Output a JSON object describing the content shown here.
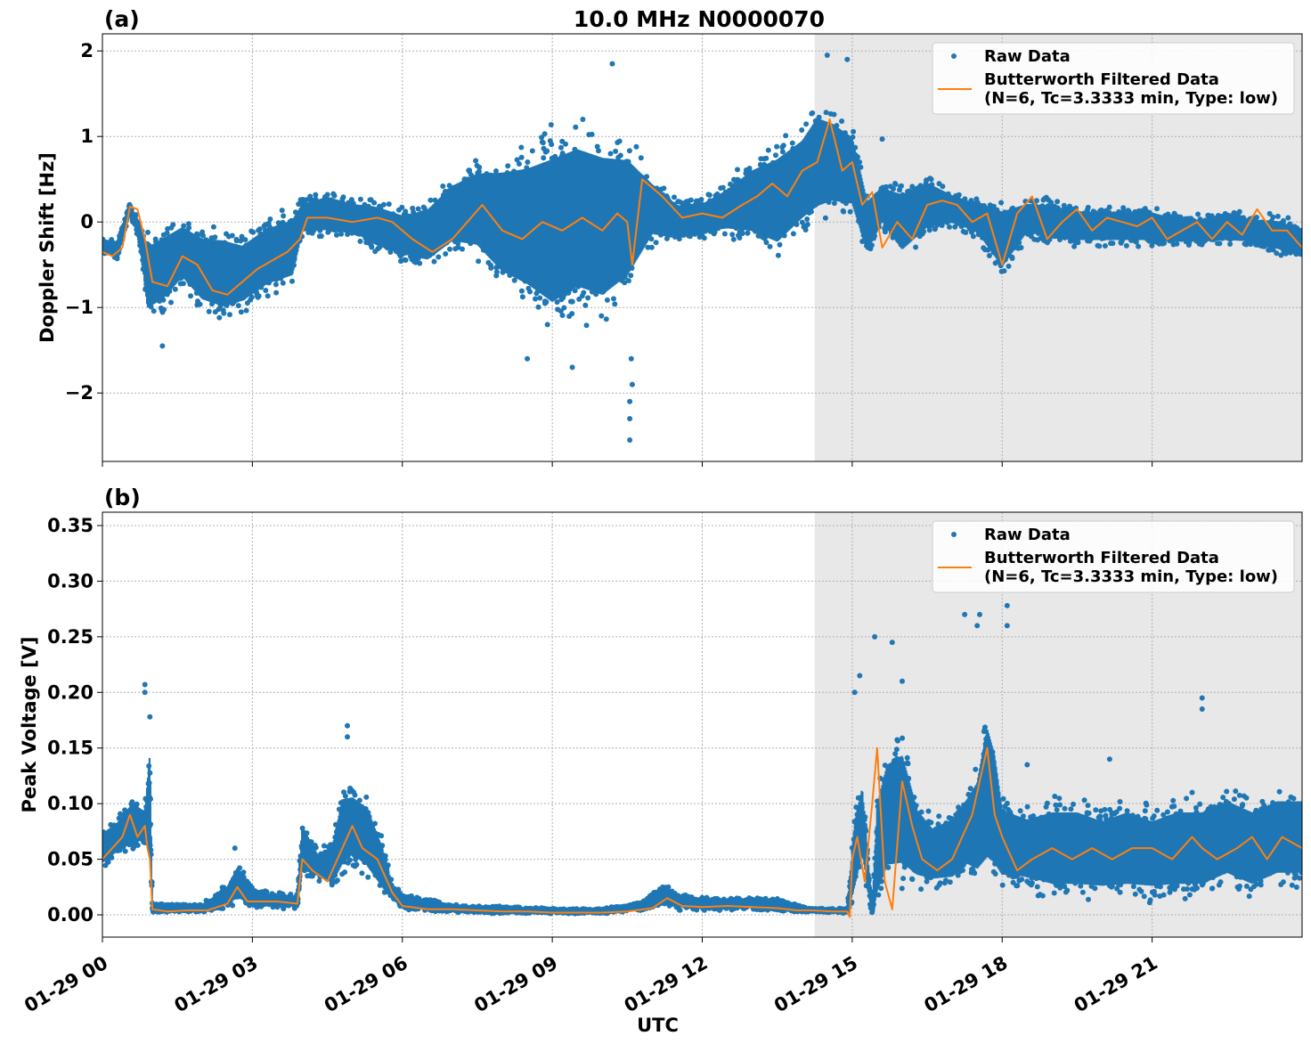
{
  "chart_data": [
    {
      "id": "panel-a",
      "type": "scatter",
      "panel_label": "(a)",
      "title": "10.0 MHz N0000070",
      "ylabel": "Doppler Shift [Hz]",
      "xlabel": "",
      "xlim": [
        0,
        24
      ],
      "ylim": [
        -2.8,
        2.2
      ],
      "yticks": [
        -2,
        -1,
        0,
        1,
        2
      ],
      "ytick_labels": [
        "−2",
        "−1",
        "0",
        "1",
        "2"
      ],
      "xticks": [
        0,
        3,
        6,
        9,
        12,
        15,
        18,
        21
      ],
      "show_xtick_labels": false,
      "shaded_region": [
        14.25,
        24
      ],
      "grid": true,
      "legend": {
        "placement": "top-right",
        "entries": [
          {
            "label": "Raw Data",
            "marker": "dot"
          },
          {
            "label": "Butterworth Filtered Data",
            "label2": "(N=6, Tc=3.3333 min, Type: low)",
            "marker": "line"
          }
        ]
      },
      "series": [
        {
          "name": "Raw Data",
          "color": "#1f77b4",
          "kind": "band",
          "x": [
            0,
            0.3,
            0.55,
            0.75,
            0.9,
            1.2,
            1.6,
            2.0,
            2.4,
            2.8,
            3.3,
            3.8,
            4.0,
            4.5,
            5.0,
            5.5,
            6.0,
            6.5,
            7.0,
            7.5,
            8.0,
            8.5,
            9.0,
            9.5,
            10.0,
            10.5,
            11.0,
            11.5,
            12.0,
            12.5,
            13.0,
            13.5,
            14.0,
            14.3,
            14.6,
            15.0,
            15.3,
            15.6,
            16.0,
            16.5,
            17.0,
            17.5,
            18.0,
            18.5,
            19.0,
            19.5,
            20.0,
            20.5,
            21.0,
            21.5,
            22.0,
            22.5,
            23.0,
            23.5,
            24.0
          ],
          "low": [
            -0.4,
            -0.45,
            0.1,
            -0.3,
            -1.2,
            -1.1,
            -0.8,
            -1.1,
            -1.2,
            -1.1,
            -0.9,
            -0.8,
            -0.2,
            -0.2,
            -0.2,
            -0.4,
            -0.5,
            -0.6,
            -0.4,
            -0.5,
            -0.9,
            -1.1,
            -1.4,
            -1.2,
            -1.3,
            -1.0,
            -0.3,
            -0.3,
            -0.2,
            -0.2,
            -0.3,
            -0.5,
            -0.2,
            -0.1,
            0.0,
            0.0,
            -0.5,
            -0.1,
            -0.5,
            -0.2,
            -0.1,
            -0.2,
            -0.7,
            -0.2,
            -0.3,
            -0.3,
            -0.3,
            -0.3,
            -0.3,
            -0.3,
            -0.3,
            -0.3,
            -0.3,
            -0.4,
            -0.5
          ],
          "high": [
            -0.15,
            -0.2,
            0.25,
            0.0,
            -0.1,
            0.0,
            0.1,
            0.0,
            0.0,
            -0.1,
            0.1,
            0.2,
            0.3,
            0.4,
            0.3,
            0.3,
            0.2,
            0.3,
            0.6,
            0.8,
            0.9,
            1.0,
            1.2,
            1.3,
            1.2,
            1.1,
            0.6,
            0.3,
            0.3,
            0.5,
            0.8,
            1.0,
            1.2,
            1.5,
            1.4,
            1.2,
            0.4,
            0.5,
            0.5,
            0.6,
            0.4,
            0.3,
            0.3,
            0.3,
            0.3,
            0.2,
            0.2,
            0.2,
            0.2,
            0.1,
            0.1,
            0.2,
            0.1,
            0.1,
            0.0
          ],
          "outliers": [
            [
              10.55,
              -2.55
            ],
            [
              10.55,
              -2.3
            ],
            [
              10.55,
              -2.1
            ],
            [
              10.6,
              -1.9
            ],
            [
              10.58,
              -1.6
            ],
            [
              10.2,
              1.85
            ],
            [
              8.5,
              -1.6
            ],
            [
              14.5,
              1.95
            ],
            [
              14.9,
              1.9
            ],
            [
              9.4,
              -1.7
            ],
            [
              1.2,
              -1.45
            ],
            [
              15.6,
              0.97
            ]
          ]
        },
        {
          "name": "Butterworth Filtered Data",
          "color": "#ff7f0e",
          "kind": "line",
          "x": [
            0,
            0.2,
            0.4,
            0.55,
            0.7,
            0.85,
            1.0,
            1.3,
            1.6,
            1.9,
            2.2,
            2.5,
            2.8,
            3.1,
            3.4,
            3.7,
            3.95,
            4.1,
            4.5,
            5.0,
            5.5,
            5.8,
            6.2,
            6.6,
            7.0,
            7.3,
            7.6,
            8.0,
            8.4,
            8.8,
            9.2,
            9.6,
            10.0,
            10.3,
            10.5,
            10.6,
            10.8,
            11.2,
            11.6,
            12.0,
            12.4,
            12.8,
            13.1,
            13.4,
            13.7,
            14.0,
            14.3,
            14.55,
            14.8,
            15.0,
            15.2,
            15.4,
            15.6,
            15.9,
            16.2,
            16.5,
            16.8,
            17.1,
            17.4,
            17.7,
            18.0,
            18.3,
            18.6,
            18.9,
            19.2,
            19.5,
            19.8,
            20.1,
            20.4,
            20.7,
            21.0,
            21.3,
            21.6,
            21.9,
            22.2,
            22.5,
            22.8,
            23.1,
            23.4,
            23.7,
            24.0
          ],
          "y": [
            -0.35,
            -0.4,
            -0.3,
            0.18,
            0.15,
            -0.2,
            -0.7,
            -0.75,
            -0.4,
            -0.5,
            -0.8,
            -0.85,
            -0.7,
            -0.55,
            -0.45,
            -0.35,
            -0.2,
            0.05,
            0.05,
            0.0,
            0.05,
            0.0,
            -0.2,
            -0.35,
            -0.2,
            0.0,
            0.2,
            -0.1,
            -0.2,
            0.0,
            -0.1,
            0.05,
            -0.1,
            0.1,
            0.0,
            -0.5,
            0.5,
            0.3,
            0.05,
            0.1,
            0.05,
            0.2,
            0.3,
            0.45,
            0.3,
            0.6,
            0.7,
            1.2,
            0.6,
            0.7,
            0.2,
            0.35,
            -0.3,
            0.0,
            -0.2,
            0.2,
            0.25,
            0.2,
            0.0,
            0.1,
            -0.5,
            0.1,
            0.3,
            -0.2,
            0.0,
            0.15,
            -0.1,
            0.05,
            0.0,
            -0.05,
            0.05,
            -0.2,
            -0.1,
            0.0,
            -0.2,
            0.0,
            -0.15,
            0.15,
            -0.1,
            -0.1,
            -0.3
          ]
        }
      ]
    },
    {
      "id": "panel-b",
      "type": "scatter",
      "panel_label": "(b)",
      "title": "",
      "ylabel": "Peak Voltage [V]",
      "xlabel": "UTC",
      "xlim": [
        0,
        24
      ],
      "ylim": [
        -0.02,
        0.362
      ],
      "yticks": [
        0.0,
        0.05,
        0.1,
        0.15,
        0.2,
        0.25,
        0.3,
        0.35
      ],
      "ytick_labels": [
        "0.00",
        "0.05",
        "0.10",
        "0.15",
        "0.20",
        "0.25",
        "0.30",
        "0.35"
      ],
      "xticks": [
        0,
        3,
        6,
        9,
        12,
        15,
        18,
        21
      ],
      "xtick_labels": [
        "01-29 00",
        "01-29 03",
        "01-29 06",
        "01-29 09",
        "01-29 12",
        "01-29 15",
        "01-29 18",
        "01-29 21"
      ],
      "show_xtick_labels": true,
      "shaded_region": [
        14.25,
        24
      ],
      "grid": true,
      "legend": {
        "placement": "top-right",
        "entries": [
          {
            "label": "Raw Data",
            "marker": "dot"
          },
          {
            "label": "Butterworth Filtered Data",
            "label2": "(N=6, Tc=3.3333 min, Type: low)",
            "marker": "line"
          }
        ]
      },
      "series": [
        {
          "name": "Raw Data",
          "color": "#1f77b4",
          "kind": "band",
          "x": [
            0,
            0.3,
            0.6,
            0.85,
            0.95,
            1.0,
            1.5,
            2.0,
            2.5,
            2.7,
            3.0,
            3.5,
            3.9,
            4.0,
            4.3,
            4.6,
            4.8,
            5.0,
            5.3,
            5.6,
            5.8,
            6.0,
            6.5,
            7.0,
            8.0,
            9.0,
            10.0,
            10.8,
            11.2,
            11.5,
            12.0,
            12.5,
            13.0,
            13.5,
            13.9,
            14.2,
            14.7,
            14.9,
            15.05,
            15.2,
            15.4,
            15.5,
            15.7,
            16.0,
            16.3,
            16.6,
            17.0,
            17.3,
            17.5,
            17.7,
            17.85,
            18.0,
            18.5,
            19.0,
            19.5,
            20.0,
            20.5,
            21.0,
            21.5,
            22.0,
            22.5,
            23.0,
            23.5,
            24.0
          ],
          "low": [
            0.04,
            0.05,
            0.055,
            0.06,
            0.03,
            0.002,
            0.002,
            0.002,
            0.005,
            0.008,
            0.006,
            0.005,
            0.005,
            0.03,
            0.03,
            0.02,
            0.03,
            0.04,
            0.03,
            0.015,
            0.01,
            0.005,
            0.003,
            0.002,
            0.001,
            0.001,
            0.001,
            0.004,
            0.008,
            0.004,
            0.004,
            0.004,
            0.004,
            0.003,
            0.002,
            0.002,
            0.002,
            0.001,
            0.01,
            0.04,
            0.0,
            0.0,
            0.02,
            0.02,
            0.02,
            0.02,
            0.02,
            0.03,
            0.02,
            0.02,
            0.02,
            0.02,
            0.02,
            0.01,
            0.01,
            0.01,
            0.01,
            0.01,
            0.01,
            0.01,
            0.02,
            0.01,
            0.02,
            0.02
          ],
          "high": [
            0.08,
            0.09,
            0.11,
            0.1,
            0.17,
            0.01,
            0.01,
            0.01,
            0.03,
            0.05,
            0.025,
            0.02,
            0.02,
            0.09,
            0.06,
            0.07,
            0.12,
            0.12,
            0.11,
            0.07,
            0.03,
            0.02,
            0.015,
            0.01,
            0.008,
            0.006,
            0.006,
            0.012,
            0.03,
            0.02,
            0.016,
            0.015,
            0.016,
            0.015,
            0.01,
            0.006,
            0.006,
            0.006,
            0.1,
            0.13,
            0.005,
            0.12,
            0.16,
            0.17,
            0.11,
            0.09,
            0.1,
            0.12,
            0.14,
            0.2,
            0.17,
            0.11,
            0.1,
            0.11,
            0.11,
            0.1,
            0.11,
            0.1,
            0.11,
            0.11,
            0.12,
            0.11,
            0.12,
            0.12
          ],
          "outliers": [
            [
              0.85,
              0.207
            ],
            [
              0.85,
              0.2
            ],
            [
              0.95,
              0.178
            ],
            [
              4.9,
              0.17
            ],
            [
              4.9,
              0.16
            ],
            [
              2.65,
              0.06
            ],
            [
              15.05,
              0.2
            ],
            [
              15.15,
              0.215
            ],
            [
              15.45,
              0.25
            ],
            [
              15.8,
              0.245
            ],
            [
              16.0,
              0.21
            ],
            [
              17.25,
              0.27
            ],
            [
              17.55,
              0.27
            ],
            [
              17.5,
              0.26
            ],
            [
              18.1,
              0.278
            ],
            [
              18.1,
              0.26
            ],
            [
              22.0,
              0.195
            ],
            [
              22.0,
              0.185
            ],
            [
              20.15,
              0.14
            ],
            [
              21.8,
              0.11
            ],
            [
              18.5,
              0.135
            ]
          ]
        },
        {
          "name": "Butterworth Filtered Data",
          "color": "#ff7f0e",
          "kind": "line",
          "x": [
            0,
            0.2,
            0.4,
            0.55,
            0.7,
            0.85,
            0.9,
            0.95,
            1.0,
            1.3,
            1.7,
            2.1,
            2.5,
            2.7,
            2.9,
            3.2,
            3.5,
            3.9,
            4.0,
            4.2,
            4.5,
            4.8,
            5.0,
            5.2,
            5.5,
            5.8,
            6.0,
            6.5,
            7.0,
            7.5,
            8.0,
            8.5,
            9.0,
            9.5,
            10.0,
            10.5,
            11.0,
            11.3,
            11.6,
            12.0,
            12.5,
            13.0,
            13.5,
            13.9,
            14.2,
            14.6,
            14.9,
            14.95,
            15.0,
            15.1,
            15.25,
            15.4,
            15.5,
            15.65,
            15.8,
            16.0,
            16.2,
            16.4,
            16.7,
            17.0,
            17.2,
            17.4,
            17.55,
            17.7,
            17.85,
            18.0,
            18.3,
            18.6,
            19.0,
            19.4,
            19.8,
            20.2,
            20.6,
            21.0,
            21.4,
            21.8,
            22.0,
            22.3,
            22.7,
            23.0,
            23.3,
            23.6,
            24.0
          ],
          "y": [
            0.05,
            0.06,
            0.07,
            0.09,
            0.07,
            0.08,
            0.06,
            0.05,
            0.005,
            0.003,
            0.004,
            0.004,
            0.01,
            0.025,
            0.012,
            0.012,
            0.012,
            0.01,
            0.05,
            0.04,
            0.03,
            0.06,
            0.08,
            0.06,
            0.05,
            0.02,
            0.008,
            0.005,
            0.005,
            0.004,
            0.003,
            0.003,
            0.002,
            0.002,
            0.002,
            0.003,
            0.006,
            0.015,
            0.008,
            0.007,
            0.008,
            0.007,
            0.006,
            0.004,
            0.004,
            0.003,
            0.003,
            -0.002,
            0.05,
            0.07,
            0.03,
            0.1,
            0.15,
            0.03,
            0.005,
            0.12,
            0.08,
            0.05,
            0.04,
            0.05,
            0.07,
            0.09,
            0.12,
            0.15,
            0.09,
            0.07,
            0.04,
            0.05,
            0.06,
            0.05,
            0.06,
            0.05,
            0.06,
            0.06,
            0.05,
            0.07,
            0.06,
            0.05,
            0.06,
            0.07,
            0.05,
            0.07,
            0.06
          ]
        }
      ]
    }
  ]
}
